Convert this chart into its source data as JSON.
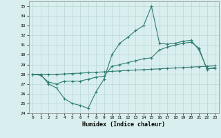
{
  "line1_x": [
    0,
    1,
    2,
    3,
    4,
    5,
    6,
    7,
    8,
    9,
    10,
    11,
    12,
    13,
    14,
    15,
    16,
    17,
    18,
    19,
    20,
    21,
    22,
    23
  ],
  "line1_y": [
    28.0,
    28.0,
    27.0,
    26.6,
    25.5,
    25.0,
    24.8,
    24.5,
    26.2,
    27.5,
    30.0,
    31.2,
    31.8,
    32.5,
    33.0,
    35.0,
    31.2,
    31.1,
    31.2,
    31.4,
    31.5,
    30.5,
    28.6,
    28.6
  ],
  "line2_x": [
    0,
    1,
    2,
    3,
    4,
    5,
    6,
    7,
    8,
    9,
    10,
    11,
    12,
    13,
    14,
    15,
    16,
    17,
    18,
    19,
    20,
    21,
    22,
    23
  ],
  "line2_y": [
    28.0,
    28.0,
    28.0,
    28.0,
    28.04,
    28.08,
    28.12,
    28.17,
    28.21,
    28.25,
    28.3,
    28.35,
    28.4,
    28.44,
    28.48,
    28.52,
    28.56,
    28.61,
    28.65,
    28.7,
    28.74,
    28.78,
    28.82,
    28.87
  ],
  "line3_x": [
    0,
    1,
    2,
    3,
    4,
    5,
    6,
    7,
    8,
    9,
    10,
    11,
    12,
    13,
    14,
    15,
    16,
    17,
    18,
    19,
    20,
    21,
    22,
    23
  ],
  "line3_y": [
    28.0,
    27.9,
    27.2,
    27.0,
    27.3,
    27.3,
    27.3,
    27.5,
    27.7,
    27.8,
    28.8,
    29.0,
    29.2,
    29.4,
    29.6,
    29.7,
    30.5,
    30.8,
    31.0,
    31.2,
    31.3,
    30.7,
    28.5,
    28.7
  ],
  "line_color": "#2e7d6e",
  "bg_color": "#d9eeee",
  "grid_color": "#b8d8d8",
  "xlabel": "Humidex (Indice chaleur)",
  "ylim": [
    24,
    35.5
  ],
  "xlim": [
    -0.5,
    23.5
  ],
  "yticks": [
    24,
    25,
    26,
    27,
    28,
    29,
    30,
    31,
    32,
    33,
    34,
    35
  ],
  "xticks": [
    0,
    1,
    2,
    3,
    4,
    5,
    6,
    7,
    8,
    9,
    10,
    11,
    12,
    13,
    14,
    15,
    16,
    17,
    18,
    19,
    20,
    21,
    22,
    23
  ]
}
